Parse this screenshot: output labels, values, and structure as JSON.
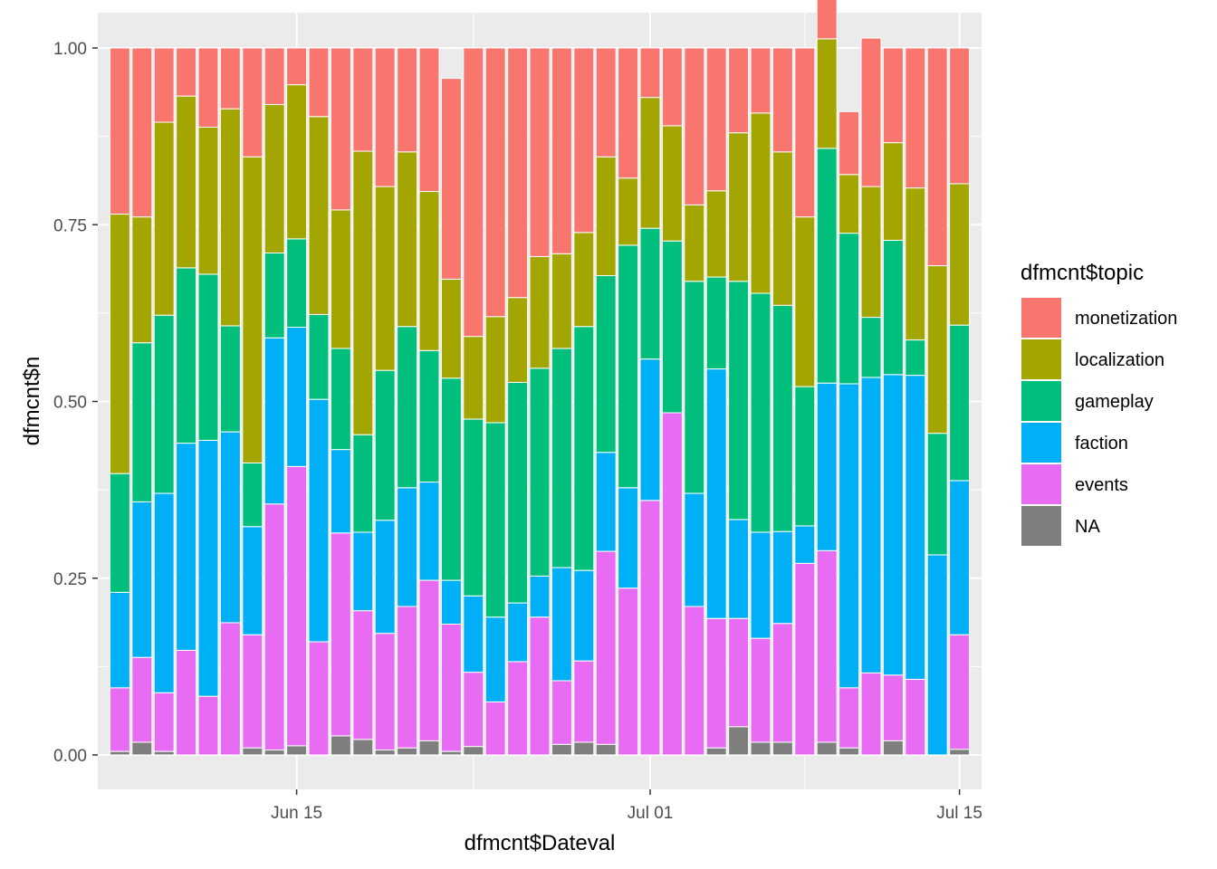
{
  "chart_data": {
    "type": "bar",
    "stacked": "fill",
    "xlabel": "dfmcnt$Dateval",
    "ylabel": "dfmcnt$n",
    "ylim": [
      0,
      1
    ],
    "yticks": [
      "0.00",
      "0.25",
      "0.50",
      "0.75",
      "1.00"
    ],
    "yticks_values": [
      0,
      0.25,
      0.5,
      0.75,
      1
    ],
    "xticks": [
      {
        "date": "2023-06-15",
        "label": "Jun 15"
      },
      {
        "date": "2023-07-01",
        "label": "Jul 01"
      },
      {
        "date": "2023-07-15",
        "label": "Jul 15"
      }
    ],
    "x_range": [
      "2023-06-06",
      "2023-07-16"
    ],
    "grid": true,
    "legend": {
      "title": "dfmcnt$topic",
      "position": "right"
    },
    "categories": [
      "2023-06-07",
      "2023-06-08",
      "2023-06-09",
      "2023-06-10",
      "2023-06-11",
      "2023-06-12",
      "2023-06-13",
      "2023-06-14",
      "2023-06-15",
      "2023-06-16",
      "2023-06-17",
      "2023-06-18",
      "2023-06-19",
      "2023-06-20",
      "2023-06-21",
      "2023-06-22",
      "2023-06-23",
      "2023-06-24",
      "2023-06-25",
      "2023-06-26",
      "2023-06-27",
      "2023-06-28",
      "2023-06-29",
      "2023-06-30",
      "2023-07-01",
      "2023-07-02",
      "2023-07-03",
      "2023-07-04",
      "2023-07-05",
      "2023-07-06",
      "2023-07-07",
      "2023-07-08",
      "2023-07-09",
      "2023-07-10",
      "2023-07-11",
      "2023-07-12",
      "2023-07-13",
      "2023-07-14",
      "2023-07-15"
    ],
    "series": [
      {
        "name": "NA",
        "color": "#7F7F7F",
        "values": [
          0.005,
          0.018,
          0.005,
          0,
          0,
          0,
          0.01,
          0.007,
          0.013,
          0,
          0.027,
          0.022,
          0.007,
          0.01,
          0.02,
          0.005,
          0.012,
          0,
          0,
          0,
          0.015,
          0.018,
          0.015,
          0,
          0,
          0,
          0,
          0.01,
          0.04,
          0.018,
          0.018,
          0,
          0.018,
          0.01,
          0,
          0.02,
          0,
          0,
          0.008
        ]
      },
      {
        "name": "events",
        "color": "#E76BF3",
        "values": [
          0.09,
          0.12,
          0.083,
          0.148,
          0.083,
          0.187,
          0.16,
          0.348,
          0.395,
          0.16,
          0.287,
          0.182,
          0.165,
          0.2,
          0.227,
          0.18,
          0.105,
          0.075,
          0.132,
          0.195,
          0.09,
          0.115,
          0.273,
          0.236,
          0.36,
          0.484,
          0.21,
          0.183,
          0.153,
          0.147,
          0.168,
          0.271,
          0.271,
          0.085,
          0.116,
          0.093,
          0.107,
          0,
          0.162
        ]
      },
      {
        "name": "faction",
        "color": "#00B0F6",
        "values": [
          0.135,
          0.22,
          0.282,
          0.293,
          0.362,
          0.27,
          0.153,
          0.235,
          0.197,
          0.343,
          0.118,
          0.111,
          0.16,
          0.168,
          0.139,
          0.062,
          0.108,
          0.12,
          0.083,
          0.058,
          0.16,
          0.128,
          0.14,
          0.142,
          0.2,
          0,
          0.16,
          0.353,
          0.14,
          0.15,
          0.13,
          0.053,
          0.237,
          0.43,
          0.418,
          0.425,
          0.43,
          0.283,
          0.218
        ]
      },
      {
        "name": "gameplay",
        "color": "#00BF7D",
        "values": [
          0.168,
          0.225,
          0.252,
          0.248,
          0.235,
          0.15,
          0.09,
          0.12,
          0.125,
          0.12,
          0.143,
          0.138,
          0.212,
          0.228,
          0.186,
          0.286,
          0.25,
          0.275,
          0.312,
          0.294,
          0.31,
          0.345,
          0.25,
          0.343,
          0.185,
          0.243,
          0.3,
          0.13,
          0.337,
          0.338,
          0.32,
          0.197,
          0.332,
          0.213,
          0.085,
          0.19,
          0.05,
          0.172,
          0.22
        ]
      },
      {
        "name": "localization",
        "color": "#A3A500",
        "values": [
          0.367,
          0.178,
          0.273,
          0.243,
          0.208,
          0.307,
          0.433,
          0.21,
          0.218,
          0.28,
          0.196,
          0.401,
          0.26,
          0.247,
          0.225,
          0.14,
          0.117,
          0.15,
          0.12,
          0.158,
          0.134,
          0.133,
          0.168,
          0.095,
          0.185,
          0.163,
          0.108,
          0.122,
          0.21,
          0.255,
          0.217,
          0.24,
          0.155,
          0.083,
          0.185,
          0.138,
          0.215,
          0.237,
          0.2
        ]
      },
      {
        "name": "monetization",
        "color": "#F8766D",
        "values": [
          0.235,
          0.239,
          0.105,
          0.068,
          0.112,
          0.086,
          0.154,
          0.08,
          0.052,
          0.097,
          0.229,
          0.146,
          0.196,
          0.147,
          0.203,
          0.284,
          0.408,
          0.38,
          0.353,
          0.295,
          0.291,
          0.261,
          0.154,
          0.184,
          0.07,
          0.11,
          0.222,
          0.202,
          0.12,
          0.092,
          0.147,
          0.239,
          0.103,
          0.089,
          0.21,
          0.134,
          0.198,
          0.308,
          0.192
        ]
      }
    ]
  }
}
